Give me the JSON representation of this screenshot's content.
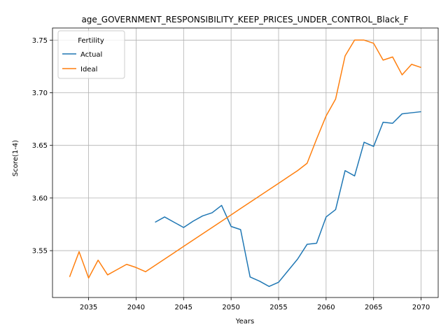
{
  "chart_data": {
    "type": "line",
    "title": "age_GOVERNMENT_RESPONSIBILITY_KEEP_PRICES_UNDER_CONTROL_Black_F",
    "xlabel": "Years",
    "ylabel": "Score(1-4)",
    "xlim": [
      2031.2,
      2071.8
    ],
    "ylim": [
      3.5055,
      3.7615
    ],
    "xticks": [
      2035,
      2040,
      2045,
      2050,
      2055,
      2060,
      2065,
      2070
    ],
    "yticks": [
      3.55,
      3.6,
      3.65,
      3.7,
      3.75
    ],
    "grid": true,
    "legend": {
      "title": "Fertility",
      "placement": "top-left"
    },
    "series": [
      {
        "name": "Actual",
        "color": "#1f77b4",
        "x": [
          2042,
          2043,
          2044,
          2045,
          2046,
          2047,
          2048,
          2049,
          2050,
          2051,
          2052,
          2053,
          2054,
          2055,
          2056,
          2057,
          2058,
          2059,
          2060,
          2061,
          2062,
          2063,
          2064,
          2065,
          2066,
          2067,
          2068,
          2069,
          2070
        ],
        "y": [
          3.577,
          3.582,
          3.577,
          3.572,
          3.578,
          3.583,
          3.586,
          3.593,
          3.573,
          3.57,
          3.525,
          3.521,
          3.516,
          3.52,
          3.531,
          3.542,
          3.556,
          3.557,
          3.582,
          3.589,
          3.626,
          3.621,
          3.653,
          3.649,
          3.672,
          3.671,
          3.68,
          3.681,
          3.682
        ]
      },
      {
        "name": "Ideal",
        "color": "#ff7f0e",
        "x": [
          2033,
          2034,
          2035,
          2036,
          2037,
          2038,
          2039,
          2040,
          2041,
          2042,
          2043,
          2044,
          2045,
          2046,
          2047,
          2048,
          2049,
          2050,
          2051,
          2052,
          2053,
          2054,
          2055,
          2056,
          2057,
          2058,
          2059,
          2060,
          2061,
          2062,
          2063,
          2064,
          2065,
          2066,
          2067,
          2068,
          2069,
          2070
        ],
        "y": [
          3.525,
          3.549,
          3.524,
          3.541,
          3.527,
          3.532,
          3.537,
          3.534,
          3.53,
          3.536,
          3.542,
          3.548,
          3.554,
          3.56,
          3.566,
          3.572,
          3.578,
          3.584,
          3.59,
          3.596,
          3.602,
          3.608,
          3.614,
          3.62,
          3.626,
          3.633,
          3.656,
          3.678,
          3.694,
          3.735,
          3.75,
          3.75,
          3.747,
          3.731,
          3.734,
          3.717,
          3.727,
          3.724
        ]
      }
    ]
  }
}
